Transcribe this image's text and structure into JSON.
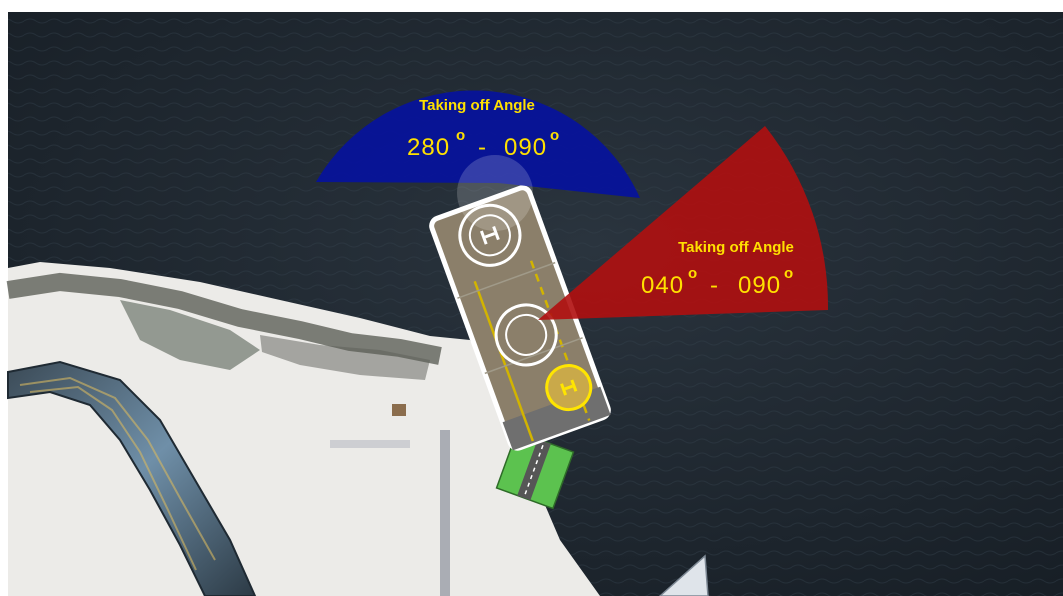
{
  "map": {
    "background": "satellite",
    "colors": {
      "water": "#202a33",
      "shore": "#eeeeec",
      "deck": "#8b7f6a",
      "deck_border": "#ffffff",
      "blue_sector": "#0a1a9e",
      "red_sector": "#b01010",
      "label_text": "#ffe000",
      "green_ramp": "#5cc24f"
    }
  },
  "sectors": [
    {
      "id": "north-pad",
      "color": "blue",
      "title": "Taking off Angle",
      "range_start": "280",
      "range_end": "090",
      "degree_symbol": "o",
      "separator": "-",
      "heading_start_deg": 280,
      "heading_end_deg": 90
    },
    {
      "id": "middle-pad",
      "color": "red",
      "title": "Taking off Angle",
      "range_start": "040",
      "range_end": "090",
      "degree_symbol": "o",
      "separator": "-",
      "heading_start_deg": 40,
      "heading_end_deg": 90
    }
  ],
  "helipads": [
    {
      "id": "north",
      "marking": "H"
    },
    {
      "id": "middle",
      "marking": "circle"
    },
    {
      "id": "south",
      "marking": "H",
      "color": "yellow"
    }
  ]
}
